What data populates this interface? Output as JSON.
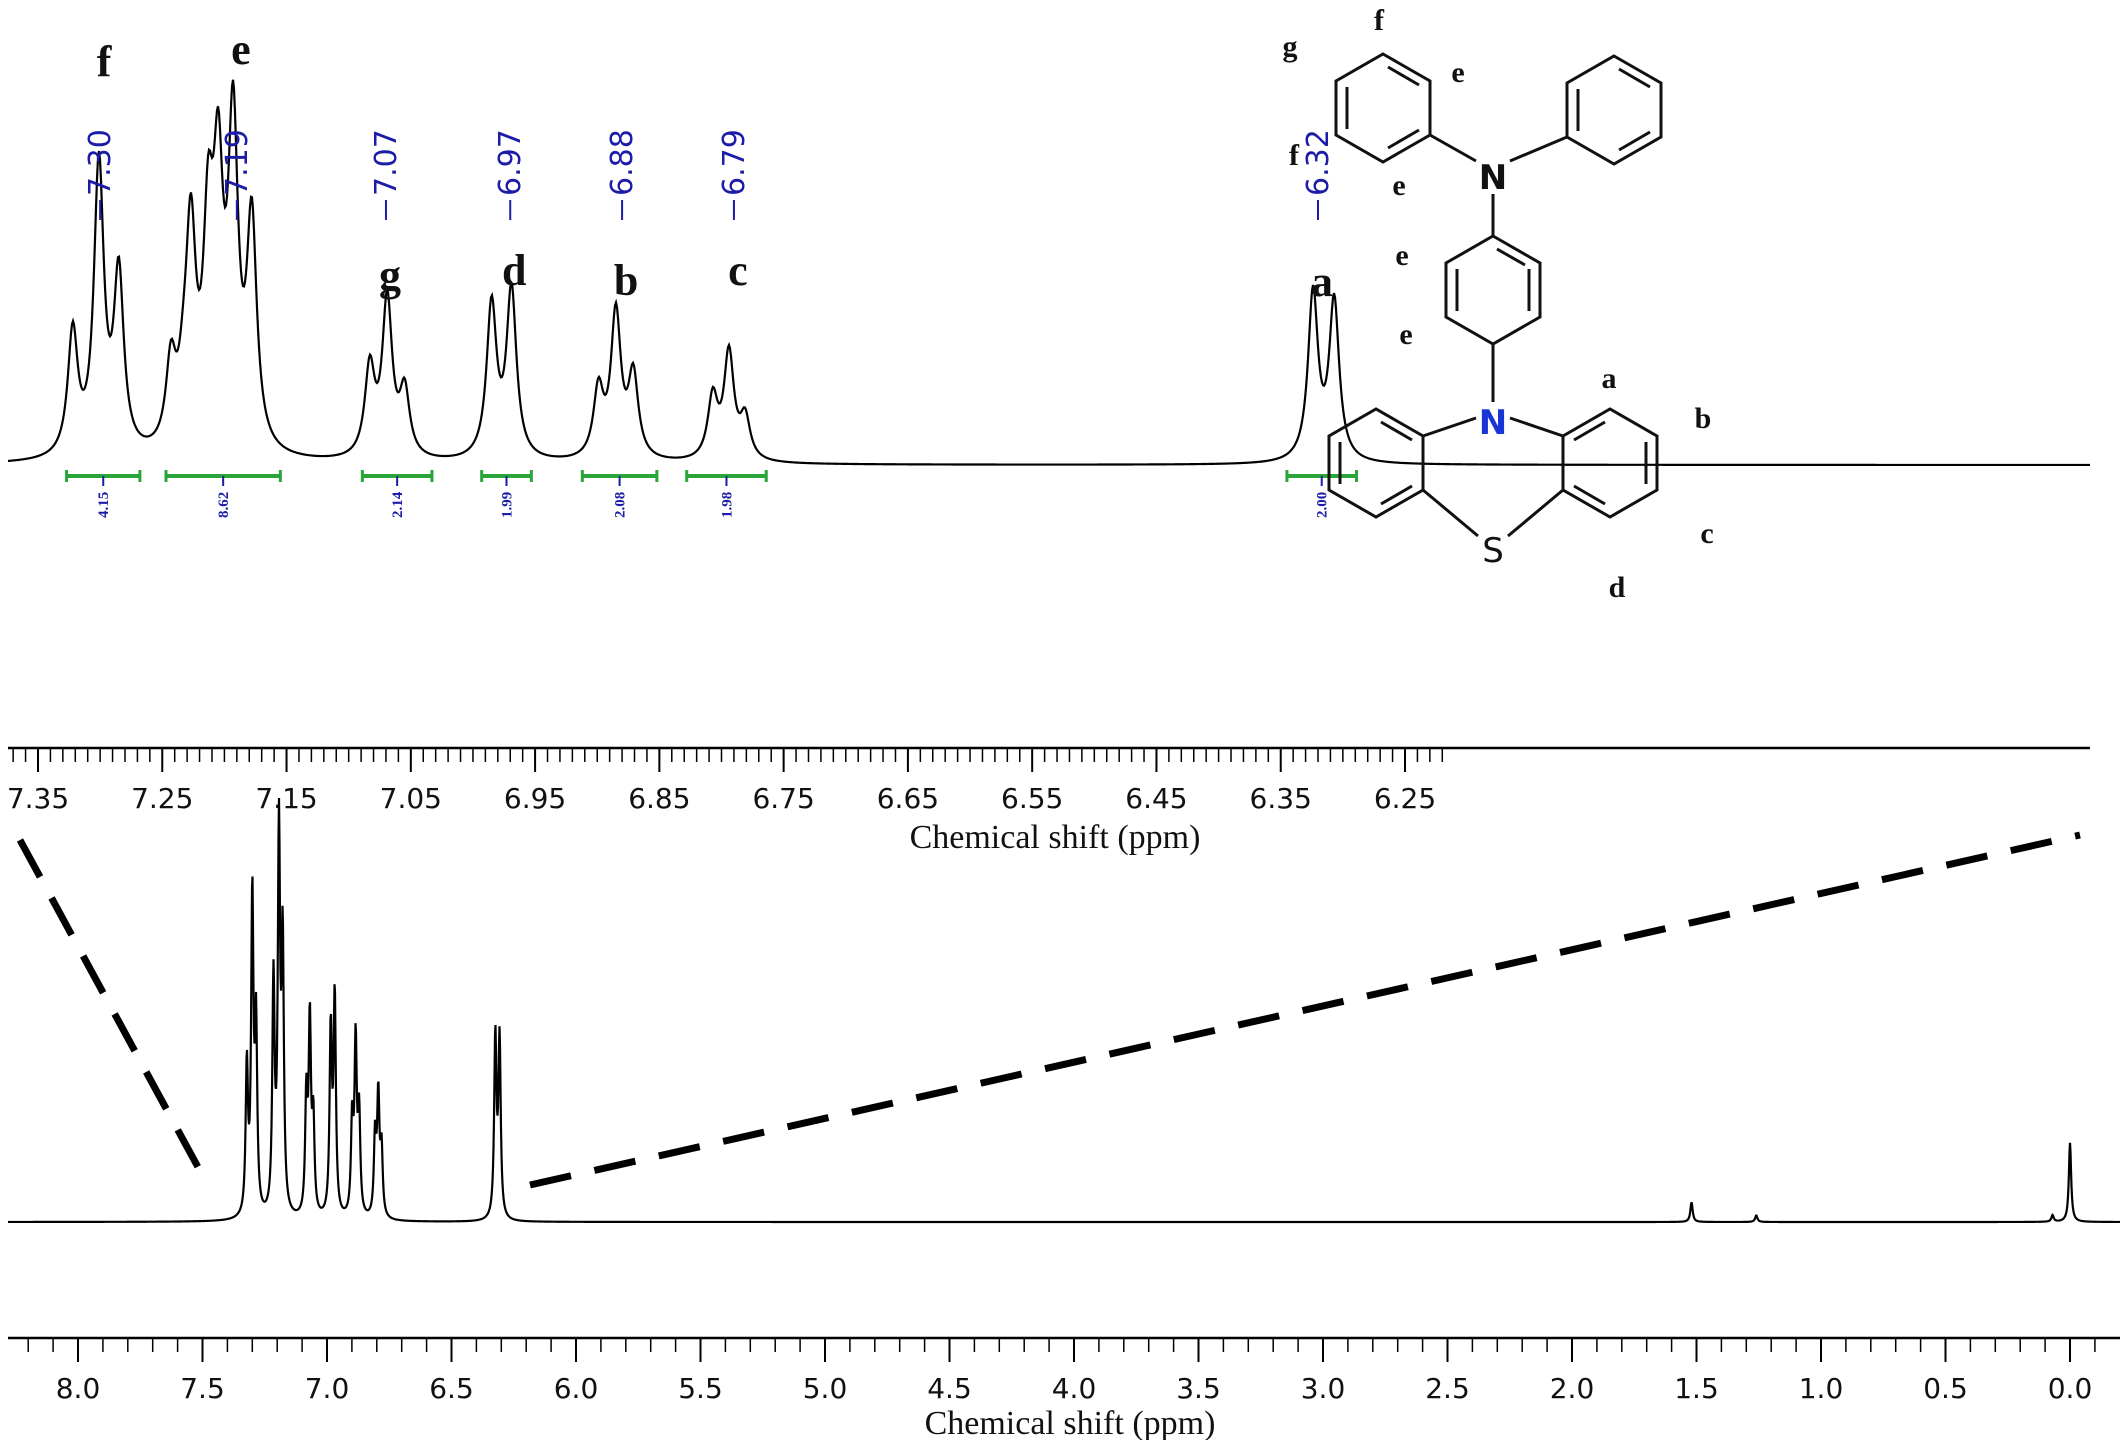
{
  "chart_data": [
    {
      "type": "line",
      "panel": "expanded",
      "xlabel": "Chemical shift (ppm)",
      "xlim": [
        7.37,
        6.22
      ],
      "xticks": [
        "7.35",
        "7.25",
        "7.15",
        "7.05",
        "6.95",
        "6.85",
        "6.75",
        "6.65",
        "6.55",
        "6.45",
        "6.35",
        "6.25"
      ],
      "peak_labels": [
        {
          "x": 7.3,
          "text": "7.30"
        },
        {
          "x": 7.19,
          "text": "7.19"
        },
        {
          "x": 7.07,
          "text": "7.07"
        },
        {
          "x": 6.97,
          "text": "6.97"
        },
        {
          "x": 6.88,
          "text": "6.88"
        },
        {
          "x": 6.79,
          "text": "6.79"
        },
        {
          "x": 6.32,
          "text": "6.32"
        }
      ],
      "assignments": [
        {
          "x": 7.3,
          "label": "f"
        },
        {
          "x": 7.19,
          "label": "e"
        },
        {
          "x": 7.07,
          "label": "g"
        },
        {
          "x": 6.97,
          "label": "d"
        },
        {
          "x": 6.88,
          "label": "b"
        },
        {
          "x": 6.79,
          "label": "c"
        },
        {
          "x": 6.32,
          "label": "a"
        }
      ],
      "integrals": [
        {
          "from": 7.327,
          "to": 7.268,
          "value": "4.15"
        },
        {
          "from": 7.247,
          "to": 7.155,
          "value": "8.62"
        },
        {
          "from": 7.089,
          "to": 7.033,
          "value": "2.14"
        },
        {
          "from": 6.993,
          "to": 6.953,
          "value": "1.99"
        },
        {
          "from": 6.912,
          "to": 6.852,
          "value": "2.08"
        },
        {
          "from": 6.828,
          "to": 6.764,
          "value": "1.98"
        },
        {
          "from": 6.345,
          "to": 6.289,
          "value": "2.00"
        }
      ],
      "peaks": [
        {
          "x": 7.322,
          "h": 0.42
        },
        {
          "x": 7.301,
          "h": 0.98
        },
        {
          "x": 7.285,
          "h": 0.6
        },
        {
          "x": 7.243,
          "h": 0.28
        },
        {
          "x": 7.233,
          "h": 0.14
        },
        {
          "x": 7.227,
          "h": 0.7
        },
        {
          "x": 7.213,
          "h": 0.67
        },
        {
          "x": 7.205,
          "h": 0.82
        },
        {
          "x": 7.193,
          "h": 1.06
        },
        {
          "x": 7.178,
          "h": 0.76
        },
        {
          "x": 7.083,
          "h": 0.3
        },
        {
          "x": 7.069,
          "h": 0.53
        },
        {
          "x": 7.055,
          "h": 0.22
        },
        {
          "x": 6.985,
          "h": 0.52
        },
        {
          "x": 6.969,
          "h": 0.57
        },
        {
          "x": 6.899,
          "h": 0.23
        },
        {
          "x": 6.885,
          "h": 0.49
        },
        {
          "x": 6.871,
          "h": 0.28
        },
        {
          "x": 6.807,
          "h": 0.21
        },
        {
          "x": 6.794,
          "h": 0.36
        },
        {
          "x": 6.781,
          "h": 0.14
        },
        {
          "x": 6.324,
          "h": 0.57
        },
        {
          "x": 6.307,
          "h": 0.54
        }
      ]
    },
    {
      "type": "line",
      "panel": "full",
      "xlabel": "Chemical shift (ppm)",
      "xlim": [
        8.3,
        -0.1
      ],
      "xticks": [
        "8.0",
        "7.5",
        "7.0",
        "6.5",
        "6.0",
        "5.5",
        "5.0",
        "4.5",
        "4.0",
        "3.5",
        "3.0",
        "2.5",
        "2.0",
        "1.5",
        "1.0",
        "0.5",
        "0.0"
      ],
      "peaks": [
        {
          "x": 7.322,
          "h": 0.45
        },
        {
          "x": 7.3,
          "h": 0.96
        },
        {
          "x": 7.285,
          "h": 0.56
        },
        {
          "x": 7.215,
          "h": 0.7
        },
        {
          "x": 7.193,
          "h": 1.14
        },
        {
          "x": 7.178,
          "h": 0.8
        },
        {
          "x": 7.083,
          "h": 0.35
        },
        {
          "x": 7.069,
          "h": 0.58
        },
        {
          "x": 7.055,
          "h": 0.28
        },
        {
          "x": 6.985,
          "h": 0.56
        },
        {
          "x": 6.969,
          "h": 0.66
        },
        {
          "x": 6.899,
          "h": 0.28
        },
        {
          "x": 6.885,
          "h": 0.52
        },
        {
          "x": 6.871,
          "h": 0.3
        },
        {
          "x": 6.807,
          "h": 0.24
        },
        {
          "x": 6.794,
          "h": 0.36
        },
        {
          "x": 6.781,
          "h": 0.2
        },
        {
          "x": 6.324,
          "h": 0.55
        },
        {
          "x": 6.307,
          "h": 0.54
        },
        {
          "x": 1.52,
          "h": 0.06
        },
        {
          "x": 1.26,
          "h": 0.02
        },
        {
          "x": 0.07,
          "h": 0.02
        },
        {
          "x": 0.0,
          "h": 0.24
        }
      ]
    }
  ],
  "structure": {
    "atoms": {
      "n_amine": "N",
      "n_phenothiazine": "N",
      "s": "S"
    },
    "labels": [
      "g",
      "f",
      "e",
      "f",
      "e",
      "e",
      "e",
      "a",
      "b",
      "c",
      "d"
    ]
  },
  "colors": {
    "axis": "#111111",
    "integral": "#2aa53a",
    "peak_label": "#1c1ca8",
    "nitrogen_highlight": "#1a35d6"
  }
}
